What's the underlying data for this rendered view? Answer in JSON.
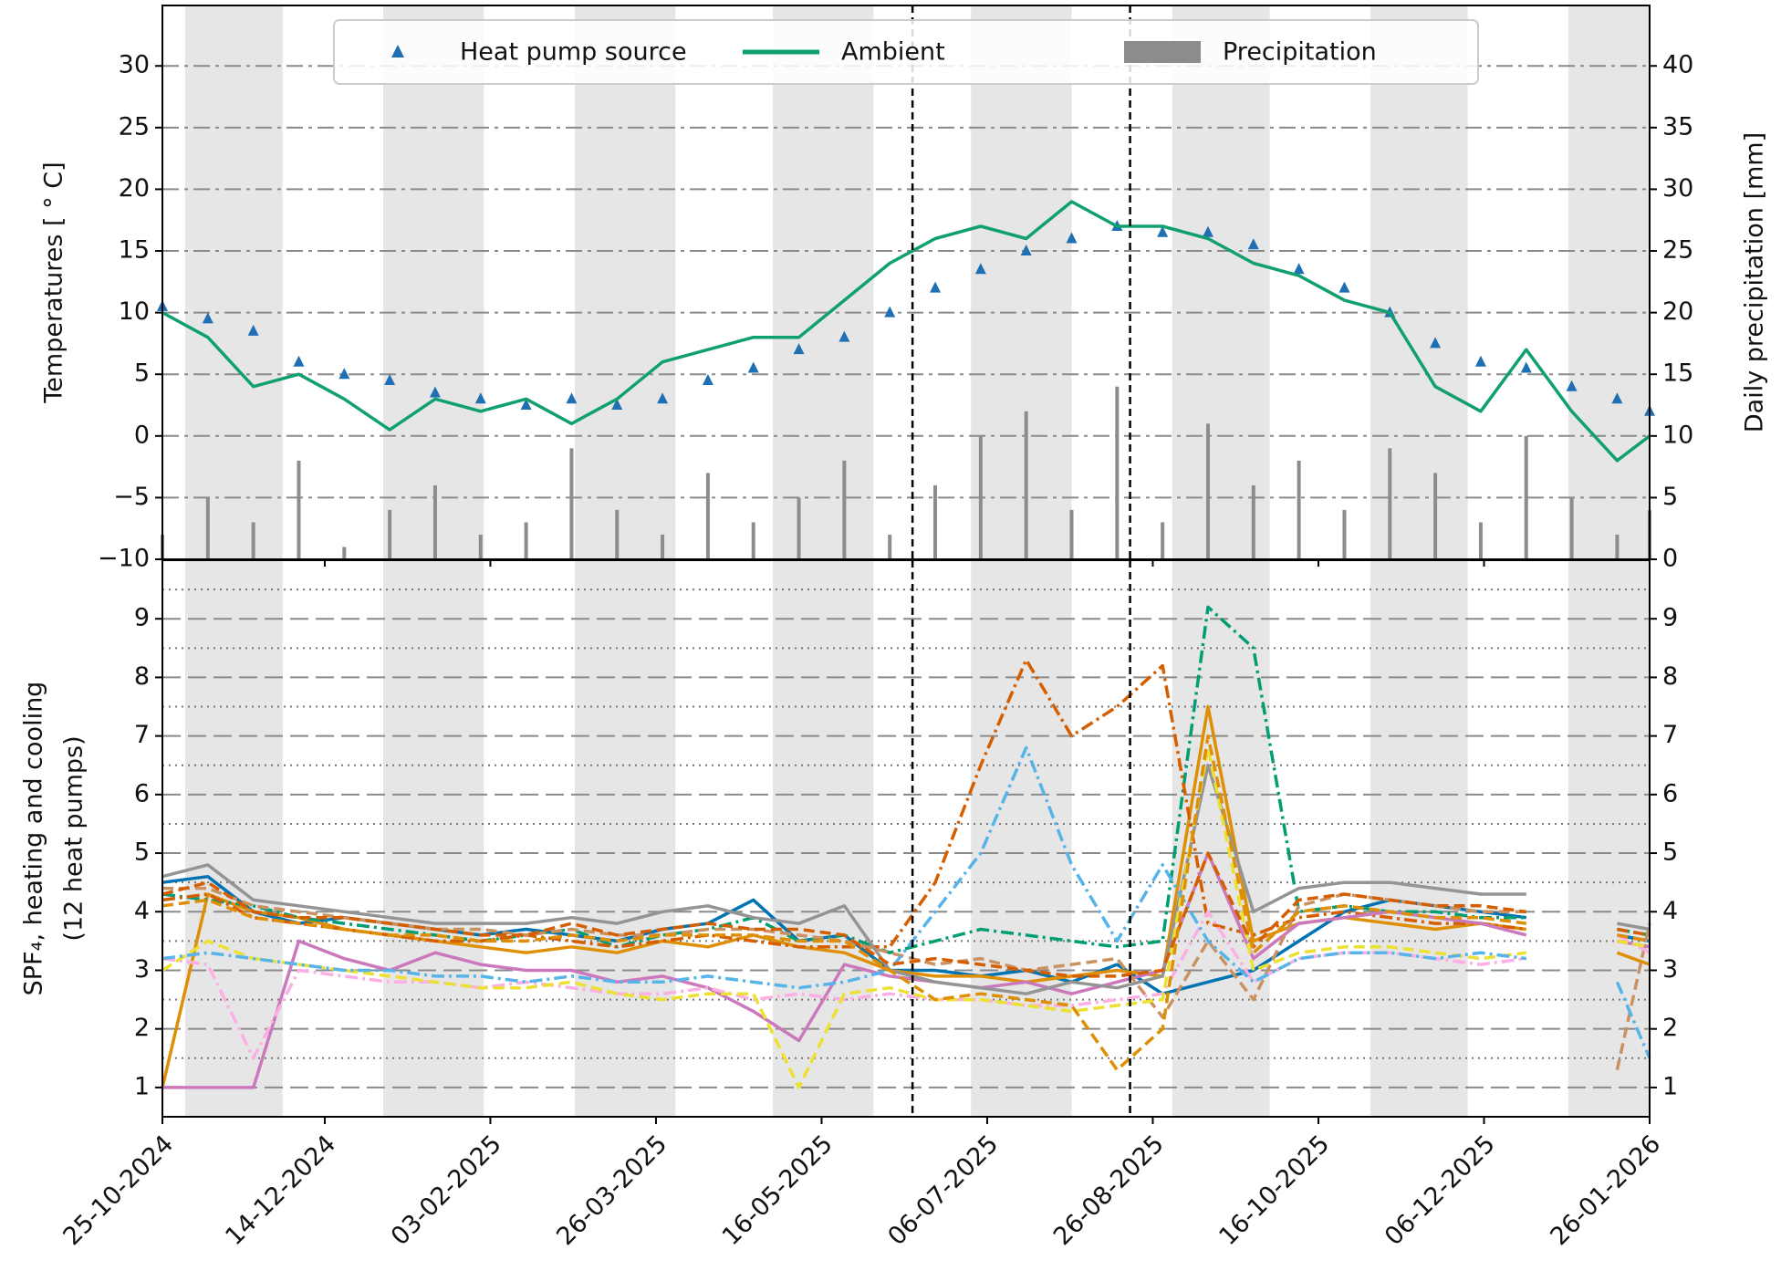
{
  "chart_data": [
    {
      "type": "line",
      "ylabel": "Temperatures [ ° C]",
      "y2label": "Daily precipitation [mm]",
      "xlim": [
        "25-10-2024",
        "26-01-2026"
      ],
      "xticks": [
        "25-10-2024",
        "14-12-2024",
        "03-02-2025",
        "26-03-2025",
        "16-05-2025",
        "06-07-2025",
        "26-08-2025",
        "16-10-2025",
        "06-12-2025",
        "26-01-2026"
      ],
      "ylim": [
        -10,
        34.9
      ],
      "yticks": [
        {
          "value": -10,
          "label": "−10"
        },
        {
          "value": -5,
          "label": "−5"
        },
        0,
        5,
        10,
        15,
        20,
        25,
        30
      ],
      "y2lim": [
        0,
        44.9
      ],
      "y2ticks": [
        0,
        5,
        10,
        15,
        20,
        25,
        30,
        35,
        40
      ],
      "grid": true,
      "legend": "upper center",
      "vlines": [
        "13-06-2025",
        "19-08-2025"
      ],
      "x": [
        "25-10-2024",
        "08-11-2024",
        "22-11-2024",
        "06-12-2024",
        "20-12-2024",
        "03-01-2025",
        "17-01-2025",
        "31-01-2025",
        "14-02-2025",
        "28-02-2025",
        "14-03-2025",
        "28-03-2025",
        "11-04-2025",
        "25-04-2025",
        "09-05-2025",
        "23-05-2025",
        "06-06-2025",
        "20-06-2025",
        "04-07-2025",
        "18-07-2025",
        "01-08-2025",
        "15-08-2025",
        "29-08-2025",
        "12-09-2025",
        "26-09-2025",
        "10-10-2025",
        "24-10-2025",
        "07-11-2025",
        "21-11-2025",
        "05-12-2025",
        "19-12-2025",
        "02-01-2026",
        "16-01-2026",
        "26-01-2026"
      ],
      "series": [
        {
          "name": "Heat pump source",
          "type": "scatter",
          "color": "#1f6fb4",
          "values": [
            10.5,
            9.5,
            8.5,
            6,
            5,
            4.5,
            3.5,
            3,
            2.5,
            3,
            2.5,
            3,
            4.5,
            5.5,
            7,
            8,
            10,
            12,
            13.5,
            15,
            16,
            17,
            16.5,
            16.5,
            15.5,
            13.5,
            12,
            10,
            7.5,
            6,
            5.5,
            4,
            3,
            2
          ]
        },
        {
          "name": "Ambient",
          "type": "line",
          "color": "#10a070",
          "values": [
            10,
            8,
            4,
            5,
            3,
            0.5,
            3,
            2,
            3,
            1,
            3,
            6,
            7,
            8,
            8,
            11,
            14,
            16,
            17,
            16,
            19,
            17,
            17,
            16,
            14,
            13,
            11,
            10,
            4,
            2,
            7,
            2,
            -2,
            0
          ]
        },
        {
          "name": "Precipitation",
          "type": "bar",
          "axis": "y2",
          "color": "#8c8c8c",
          "values": [
            2,
            5,
            3,
            8,
            1,
            4,
            6,
            2,
            3,
            9,
            4,
            2,
            7,
            3,
            5,
            8,
            2,
            6,
            10,
            12,
            4,
            14,
            3,
            11,
            6,
            8,
            4,
            9,
            7,
            3,
            10,
            5,
            2,
            4
          ]
        }
      ]
    },
    {
      "type": "line",
      "ylabel": [
        "SPF₄, heating and cooling",
        "(12 heat pumps)"
      ],
      "xlim": [
        "25-10-2024",
        "26-01-2026"
      ],
      "xticks": [
        "25-10-2024",
        "14-12-2024",
        "03-02-2025",
        "26-03-2025",
        "16-05-2025",
        "06-07-2025",
        "26-08-2025",
        "16-10-2025",
        "06-12-2025",
        "26-01-2026"
      ],
      "ylim": [
        0.5,
        10
      ],
      "yticks": [
        1,
        2,
        3,
        4,
        5,
        6,
        7,
        8,
        9
      ],
      "y2lim": [
        0.5,
        10
      ],
      "y2ticks": [
        1,
        2,
        3,
        4,
        5,
        6,
        7,
        8,
        9
      ],
      "minor_grid": [
        1.5,
        2.5,
        3.5,
        4.5,
        5.5,
        6.5,
        7.5,
        8.5,
        9.5
      ],
      "grid": true,
      "vlines": [
        "13-06-2025",
        "19-08-2025"
      ],
      "x": [
        "25-10-2024",
        "08-11-2024",
        "22-11-2024",
        "06-12-2024",
        "20-12-2024",
        "03-01-2025",
        "17-01-2025",
        "31-01-2025",
        "14-02-2025",
        "28-02-2025",
        "14-03-2025",
        "28-03-2025",
        "11-04-2025",
        "25-04-2025",
        "09-05-2025",
        "23-05-2025",
        "06-06-2025",
        "20-06-2025",
        "04-07-2025",
        "18-07-2025",
        "01-08-2025",
        "15-08-2025",
        "29-08-2025",
        "12-09-2025",
        "26-09-2025",
        "10-10-2025",
        "24-10-2025",
        "07-11-2025",
        "21-11-2025",
        "05-12-2025",
        "19-12-2025",
        "02-01-2026",
        "16-01-2026",
        "26-01-2026"
      ],
      "series": [
        {
          "color": "#0173b2",
          "dash": "solid",
          "values": [
            4.5,
            4.6,
            4.0,
            3.8,
            3.9,
            3.8,
            3.7,
            3.6,
            3.7,
            3.6,
            3.5,
            3.7,
            3.8,
            4.2,
            3.5,
            3.6,
            3.0,
            3.0,
            2.9,
            3.0,
            2.8,
            3.1,
            2.6,
            2.8,
            3.0,
            3.5,
            4.0,
            4.2,
            4.1,
            4.0,
            3.9,
            null,
            3.6,
            3.5
          ]
        },
        {
          "color": "#de8f05",
          "dash": "solid",
          "values": [
            1.0,
            4.3,
            4.0,
            3.9,
            3.7,
            3.6,
            3.5,
            3.4,
            3.3,
            3.4,
            3.3,
            3.5,
            3.4,
            3.6,
            3.4,
            3.3,
            3.0,
            2.9,
            2.9,
            2.8,
            2.9,
            3.0,
            2.9,
            7.5,
            3.5,
            3.8,
            3.9,
            3.8,
            3.7,
            3.8,
            3.7,
            null,
            3.3,
            3.1
          ]
        },
        {
          "color": "#029e73",
          "dash": "dashdot",
          "values": [
            4.3,
            4.2,
            4.1,
            3.9,
            3.8,
            3.7,
            3.6,
            3.5,
            3.6,
            3.7,
            3.4,
            3.6,
            3.7,
            3.9,
            3.5,
            3.6,
            3.3,
            3.5,
            3.7,
            3.6,
            3.5,
            3.4,
            3.5,
            9.2,
            8.5,
            4.0,
            4.1,
            4.0,
            4.0,
            3.9,
            3.9,
            null,
            3.7,
            3.6
          ]
        },
        {
          "color": "#d55e00",
          "dash": "dashdot",
          "values": [
            4.2,
            4.3,
            3.9,
            3.8,
            3.7,
            3.6,
            3.5,
            3.5,
            3.6,
            3.5,
            3.4,
            3.5,
            3.6,
            3.5,
            3.4,
            3.4,
            3.4,
            4.5,
            6.5,
            8.3,
            7.0,
            7.5,
            8.2,
            3.8,
            3.6,
            3.9,
            4.0,
            3.9,
            3.8,
            3.8,
            3.7,
            null,
            3.5,
            3.4
          ]
        },
        {
          "color": "#cc78bc",
          "dash": "solid",
          "values": [
            1.0,
            1.0,
            1.0,
            3.5,
            3.2,
            3.0,
            3.3,
            3.1,
            3.0,
            3.0,
            2.8,
            2.9,
            2.7,
            2.3,
            1.8,
            3.1,
            2.9,
            2.8,
            2.7,
            2.8,
            2.6,
            2.8,
            3.0,
            5.0,
            3.2,
            3.8,
            3.9,
            4.0,
            3.9,
            3.8,
            3.6,
            null,
            3.5,
            3.4
          ]
        },
        {
          "color": "#ca9161",
          "dash": "dashed",
          "values": [
            4.4,
            4.4,
            4.1,
            4.0,
            3.9,
            3.8,
            3.7,
            3.7,
            3.6,
            3.7,
            3.6,
            3.6,
            3.7,
            3.7,
            3.6,
            3.5,
            3.3,
            3.1,
            3.2,
            3.0,
            3.1,
            3.2,
            2.2,
            3.5,
            2.5,
            4.1,
            4.3,
            4.2,
            4.1,
            4.0,
            4.0,
            null,
            1.3,
            3.8
          ]
        },
        {
          "color": "#fbafe4",
          "dash": "dashdot",
          "values": [
            3.2,
            3.1,
            1.5,
            3.0,
            2.9,
            2.8,
            2.8,
            2.7,
            2.8,
            2.7,
            2.6,
            2.6,
            2.7,
            2.5,
            2.6,
            2.5,
            2.6,
            2.5,
            2.5,
            2.4,
            2.4,
            2.5,
            2.6,
            4.0,
            2.8,
            3.2,
            3.3,
            3.3,
            3.2,
            3.1,
            3.2,
            null,
            3.6,
            3.3
          ]
        },
        {
          "color": "#949494",
          "dash": "solid",
          "values": [
            4.6,
            4.8,
            4.2,
            4.1,
            4.0,
            3.9,
            3.8,
            3.8,
            3.8,
            3.9,
            3.8,
            4.0,
            4.1,
            3.9,
            3.8,
            4.1,
            3.0,
            2.8,
            2.7,
            2.6,
            2.8,
            2.7,
            2.9,
            6.5,
            4.0,
            4.4,
            4.5,
            4.5,
            4.4,
            4.3,
            4.3,
            null,
            3.8,
            3.7
          ]
        },
        {
          "color": "#ece133",
          "dash": "dashed",
          "values": [
            3.0,
            3.5,
            3.2,
            3.1,
            3.0,
            2.9,
            2.8,
            2.7,
            2.7,
            2.8,
            2.6,
            2.5,
            2.6,
            2.6,
            1.0,
            2.6,
            2.7,
            2.5,
            2.5,
            2.4,
            2.3,
            2.4,
            2.5,
            6.8,
            3.0,
            3.3,
            3.4,
            3.4,
            3.3,
            3.2,
            3.3,
            null,
            3.5,
            3.4
          ]
        },
        {
          "color": "#56b4e9",
          "dash": "dashdot",
          "values": [
            3.2,
            3.3,
            3.2,
            3.1,
            3.0,
            3.0,
            2.9,
            2.9,
            2.8,
            2.9,
            2.8,
            2.8,
            2.9,
            2.8,
            2.7,
            2.8,
            3.0,
            4.0,
            5.0,
            6.8,
            4.8,
            3.5,
            4.8,
            3.5,
            2.8,
            3.2,
            3.3,
            3.3,
            3.2,
            3.3,
            3.2,
            null,
            2.8,
            1.5
          ]
        },
        {
          "color": "#d55e00",
          "dash": "dashed",
          "values": [
            4.3,
            4.5,
            4.0,
            3.9,
            3.9,
            3.8,
            3.7,
            3.6,
            3.6,
            3.8,
            3.6,
            3.7,
            3.8,
            3.7,
            3.7,
            3.6,
            3.1,
            3.2,
            3.1,
            3.0,
            2.9,
            2.9,
            3.0,
            5.0,
            3.4,
            4.2,
            4.3,
            4.2,
            4.1,
            4.1,
            4.0,
            null,
            3.7,
            3.6
          ]
        },
        {
          "color": "#de8f05",
          "dash": "dashed",
          "values": [
            4.1,
            4.2,
            3.9,
            3.8,
            3.7,
            3.6,
            3.6,
            3.5,
            3.5,
            3.6,
            3.5,
            3.6,
            3.6,
            3.6,
            3.5,
            3.5,
            3.0,
            2.5,
            2.6,
            2.5,
            2.4,
            1.3,
            2.0,
            7.0,
            3.3,
            4.0,
            4.1,
            4.0,
            3.9,
            3.9,
            3.8,
            null,
            3.6,
            3.5
          ]
        }
      ]
    }
  ]
}
